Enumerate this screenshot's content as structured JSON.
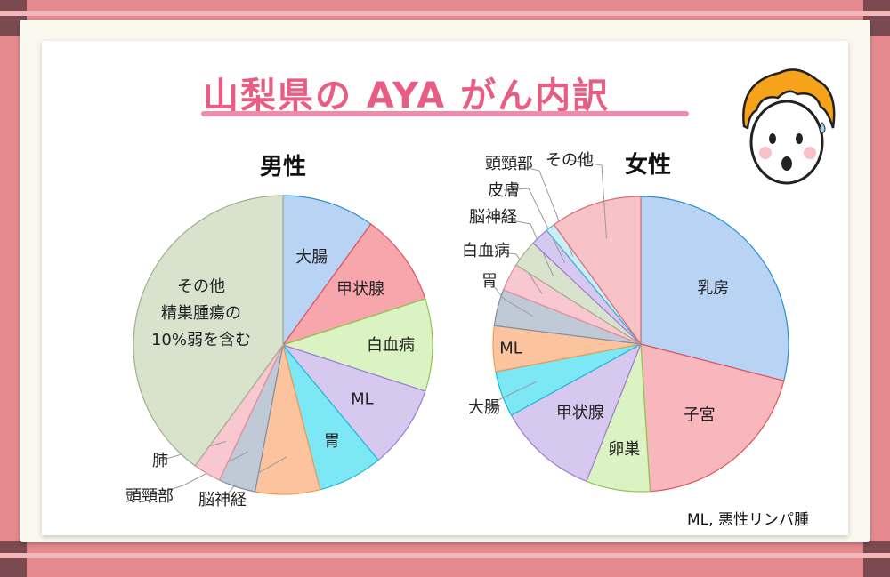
{
  "title": "山梨県の AYA がん内訳",
  "note": "ML, 悪性リンパ腫",
  "colors": {
    "accent": "#e85d84",
    "frame": "#e48a8f"
  },
  "chart_data": [
    {
      "type": "pie",
      "title": "男性",
      "categories": [
        "大腸",
        "甲状腺",
        "白血病",
        "ML",
        "胃",
        "脳神経",
        "頭頸部",
        "肺",
        "その他\n精巣腫瘍の\n10%弱を含む"
      ],
      "values": [
        10,
        10,
        10,
        9,
        7,
        7,
        4,
        3,
        40
      ],
      "colors": [
        "#b9d3f5",
        "#f7a6ab",
        "#dbf2c2",
        "#d6c8ef",
        "#7de8f5",
        "#fbc49f",
        "#c0cad6",
        "#f8c7cf",
        "#d9e2cd"
      ]
    },
    {
      "type": "pie",
      "title": "女性",
      "categories": [
        "乳房",
        "子宮",
        "卵巣",
        "甲状腺",
        "大腸",
        "ML",
        "胃",
        "白血病",
        "脳神経",
        "皮膚",
        "頭頸部",
        "その他"
      ],
      "values": [
        29,
        20,
        7,
        11,
        5,
        5,
        4,
        3,
        3,
        2,
        1,
        10
      ],
      "colors": [
        "#b9d3f5",
        "#f7b7bc",
        "#dbf2c2",
        "#d6c8ef",
        "#7de8f5",
        "#fbc49f",
        "#c0cad6",
        "#f8c7cf",
        "#d9e2cd",
        "#d6c8ef",
        "#c9eef5",
        "#f7c3c6"
      ]
    }
  ]
}
